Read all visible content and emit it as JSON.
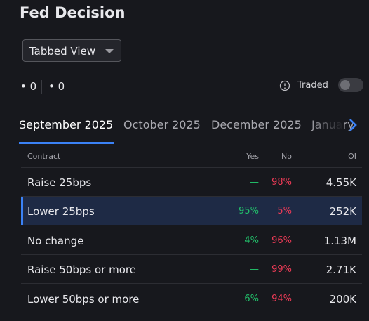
{
  "header": {
    "title": "Fed Decision"
  },
  "view_selector": {
    "label": "Tabbed View"
  },
  "counters": [
    "0",
    "0"
  ],
  "traded_toggle": {
    "label": "Traded"
  },
  "tabs": [
    "September 2025",
    "October 2025",
    "December 2025",
    "January"
  ],
  "table": {
    "columns": [
      "Contract",
      "Yes",
      "No",
      "OI"
    ],
    "rows": [
      [
        "Raise 25bps",
        "—",
        "98%",
        "4.55K"
      ],
      [
        "Lower 25bps",
        "95%",
        "5%",
        "252K"
      ],
      [
        "No change",
        "4%",
        "96%",
        "1.13M"
      ],
      [
        "Raise 50bps or more",
        "—",
        "99%",
        "2.71K"
      ],
      [
        "Lower 50bps or more",
        "6%",
        "94%",
        "200K"
      ]
    ]
  }
}
